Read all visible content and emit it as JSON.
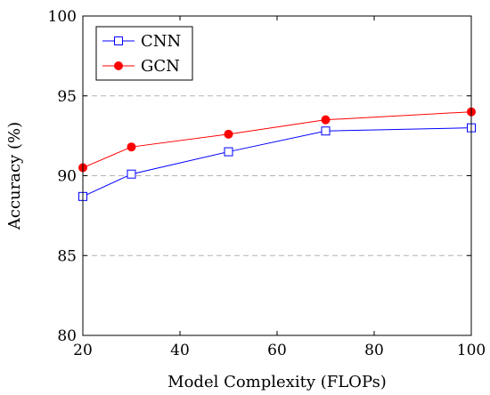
{
  "chart_data": {
    "type": "line",
    "title": "",
    "xlabel": "Model Complexity (FLOPs)",
    "ylabel": "Accuracy (%)",
    "xlim": [
      20,
      100
    ],
    "ylim": [
      80,
      100
    ],
    "xticks": [
      20,
      40,
      60,
      80,
      100
    ],
    "yticks": [
      80,
      85,
      90,
      95,
      100
    ],
    "grid": "horizontal dashed",
    "legend_position": "top-left",
    "series": [
      {
        "name": "CNN",
        "color": "#0000ff",
        "marker": "square-open",
        "x": [
          20,
          30,
          50,
          70,
          100
        ],
        "values": [
          88.7,
          90.1,
          91.5,
          92.8,
          93.0
        ]
      },
      {
        "name": "GCN",
        "color": "#ff0000",
        "marker": "circle-filled",
        "x": [
          20,
          30,
          50,
          70,
          100
        ],
        "values": [
          90.5,
          91.8,
          92.6,
          93.5,
          94.0
        ]
      }
    ]
  }
}
